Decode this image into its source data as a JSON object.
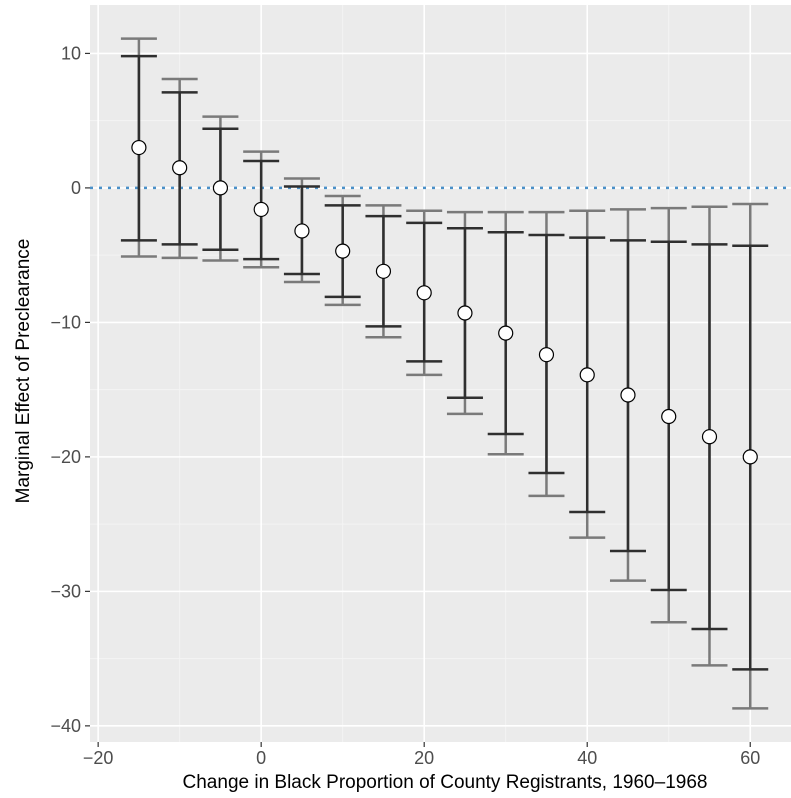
{
  "chart_data": {
    "type": "scatter",
    "title": "",
    "xlabel": "Change in Black Proportion of County Registrants, 1960–1968",
    "ylabel": "Marginal Effect of Preclearance",
    "xlim": [
      -21,
      65
    ],
    "ylim": [
      -41.2,
      13.6
    ],
    "x_ticks": [
      -20,
      0,
      20,
      40,
      60
    ],
    "x_tick_labels": [
      "−20",
      "0",
      "20",
      "40",
      "60"
    ],
    "y_ticks": [
      10,
      0,
      -10,
      -20,
      -30,
      -40
    ],
    "y_tick_labels": [
      "10",
      "0",
      "−10",
      "−20",
      "−30",
      "−40"
    ],
    "reference_line": {
      "y": 0,
      "style": "dotted",
      "color": "#4a90c8"
    },
    "grid": true,
    "colors": {
      "panel": "#ebebeb",
      "grid_major": "#ffffff",
      "grid_minor": "#f4f4f4",
      "inner_interval": "#2f2f2f",
      "outer_interval": "#7a7a7a",
      "point_fill": "#ffffff",
      "point_stroke": "#000000"
    },
    "points": [
      {
        "x": -15,
        "y": 3.0,
        "lo_inner": -3.9,
        "hi_inner": 9.8,
        "lo_outer": -5.1,
        "hi_outer": 11.1
      },
      {
        "x": -10,
        "y": 1.5,
        "lo_inner": -4.2,
        "hi_inner": 7.1,
        "lo_outer": -5.2,
        "hi_outer": 8.1
      },
      {
        "x": -5,
        "y": 0.0,
        "lo_inner": -4.6,
        "hi_inner": 4.4,
        "lo_outer": -5.4,
        "hi_outer": 5.3
      },
      {
        "x": 0,
        "y": -1.6,
        "lo_inner": -5.3,
        "hi_inner": 2.0,
        "lo_outer": -5.9,
        "hi_outer": 2.7
      },
      {
        "x": 5,
        "y": -3.2,
        "lo_inner": -6.4,
        "hi_inner": 0.1,
        "lo_outer": -7.0,
        "hi_outer": 0.7
      },
      {
        "x": 10,
        "y": -4.7,
        "lo_inner": -8.1,
        "hi_inner": -1.3,
        "lo_outer": -8.7,
        "hi_outer": -0.6
      },
      {
        "x": 15,
        "y": -6.2,
        "lo_inner": -10.3,
        "hi_inner": -2.1,
        "lo_outer": -11.1,
        "hi_outer": -1.3
      },
      {
        "x": 20,
        "y": -7.8,
        "lo_inner": -12.9,
        "hi_inner": -2.6,
        "lo_outer": -13.9,
        "hi_outer": -1.7
      },
      {
        "x": 25,
        "y": -9.3,
        "lo_inner": -15.6,
        "hi_inner": -3.0,
        "lo_outer": -16.8,
        "hi_outer": -1.8
      },
      {
        "x": 30,
        "y": -10.8,
        "lo_inner": -18.3,
        "hi_inner": -3.3,
        "lo_outer": -19.8,
        "hi_outer": -1.8
      },
      {
        "x": 35,
        "y": -12.4,
        "lo_inner": -21.2,
        "hi_inner": -3.5,
        "lo_outer": -22.9,
        "hi_outer": -1.8
      },
      {
        "x": 40,
        "y": -13.9,
        "lo_inner": -24.1,
        "hi_inner": -3.7,
        "lo_outer": -26.0,
        "hi_outer": -1.7
      },
      {
        "x": 45,
        "y": -15.4,
        "lo_inner": -27.0,
        "hi_inner": -3.9,
        "lo_outer": -29.2,
        "hi_outer": -1.6
      },
      {
        "x": 50,
        "y": -17.0,
        "lo_inner": -29.9,
        "hi_inner": -4.0,
        "lo_outer": -32.3,
        "hi_outer": -1.5
      },
      {
        "x": 55,
        "y": -18.5,
        "lo_inner": -32.8,
        "hi_inner": -4.2,
        "lo_outer": -35.5,
        "hi_outer": -1.4
      },
      {
        "x": 60,
        "y": -20.0,
        "lo_inner": -35.8,
        "hi_inner": -4.3,
        "lo_outer": -38.7,
        "hi_outer": -1.2
      }
    ]
  }
}
